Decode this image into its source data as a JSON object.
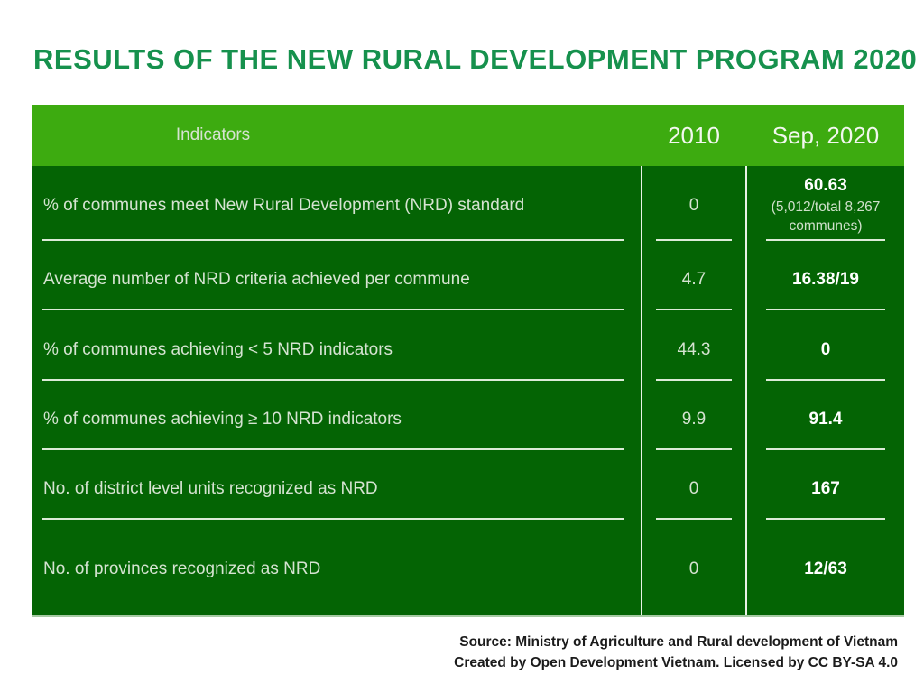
{
  "title": {
    "text": "RESULTS OF THE NEW RURAL DEVELOPMENT PROGRAM 2020"
  },
  "colors": {
    "title_color": "#16914d",
    "header_bg": "#3dab10",
    "body_bg": "#046404",
    "line_color": "#dcebd8",
    "footer_color": "#1b1b1b"
  },
  "table": {
    "header": {
      "indicators": "Indicators",
      "col_2010": "2010",
      "col_sep_2020": "Sep, 2020"
    },
    "rows": [
      {
        "indicator": "% of communes meet New Rural Development (NRD) standard",
        "y2010": "0",
        "sep2020": "60.63",
        "note": "(5,012/total 8,267 communes)"
      },
      {
        "indicator": "Average number of NRD criteria achieved per commune",
        "y2010": "4.7",
        "sep2020": "16.38/19",
        "note": ""
      },
      {
        "indicator": "% of communes achieving < 5 NRD indicators",
        "y2010": "44.3",
        "sep2020": "0",
        "note": ""
      },
      {
        "indicator": "% of communes achieving ≥ 10 NRD indicators",
        "y2010": "9.9",
        "sep2020": "91.4",
        "note": ""
      },
      {
        "indicator": "No. of district level units recognized as NRD",
        "y2010": "0",
        "sep2020": "167",
        "note": ""
      },
      {
        "indicator": "No. of provinces recognized as NRD",
        "y2010": "0",
        "sep2020": "12/63",
        "note": ""
      }
    ]
  },
  "footer": {
    "line1": "Source: Ministry of Agriculture and Rural development of Vietnam",
    "line2": "Created by Open Development Vietnam. Licensed by CC BY-SA 4.0"
  },
  "chart_data": {
    "type": "table",
    "title": "RESULTS OF THE NEW RURAL DEVELOPMENT PROGRAM 2020",
    "columns": [
      "Indicators",
      "2010",
      "Sep, 2020"
    ],
    "rows": [
      [
        "% of communes meet New Rural Development (NRD) standard",
        "0",
        "60.63 (5,012/total 8,267 communes)"
      ],
      [
        "Average number of NRD criteria achieved per commune",
        "4.7",
        "16.38/19"
      ],
      [
        "% of communes achieving < 5 NRD indicators",
        "44.3",
        "0"
      ],
      [
        "% of communes achieving ≥ 10 NRD indicators",
        "9.9",
        "91.4"
      ],
      [
        "No. of district level units recognized as NRD",
        "0",
        "167"
      ],
      [
        "No. of provinces recognized as NRD",
        "0",
        "12/63"
      ]
    ],
    "layout": {
      "header_row": true,
      "grid": "partial-underlines",
      "legend": "none"
    }
  }
}
